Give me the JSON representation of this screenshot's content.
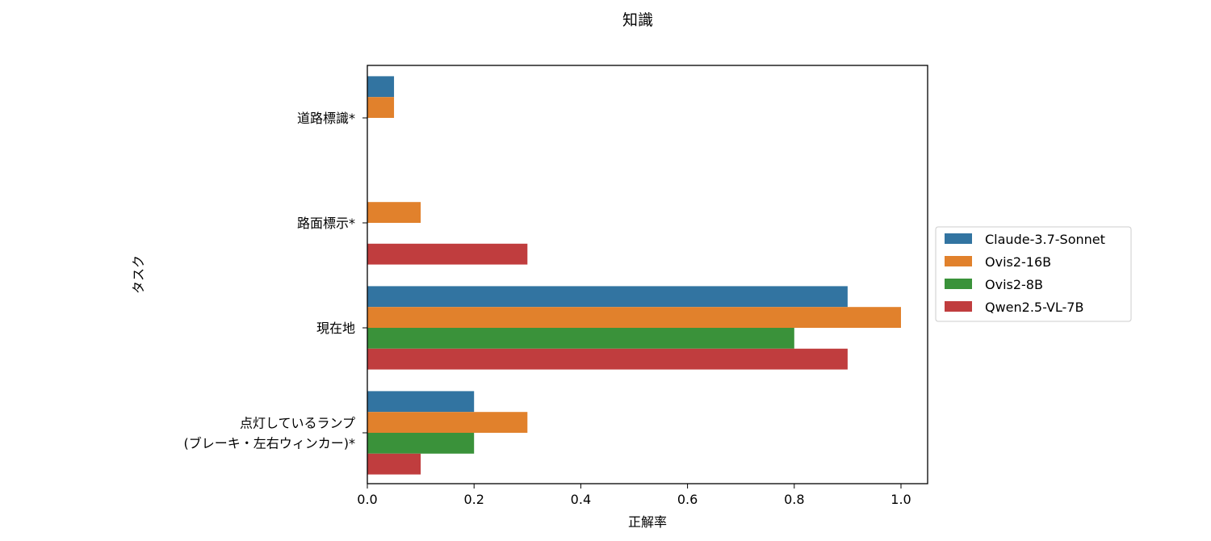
{
  "chart_data": {
    "type": "bar",
    "orientation": "horizontal",
    "title": "知識",
    "xlabel": "正解率",
    "ylabel": "タスク",
    "xlim": [
      0.0,
      1.05
    ],
    "xticks": [
      "0.0",
      "0.2",
      "0.4",
      "0.6",
      "0.8",
      "1.0"
    ],
    "categories": [
      [
        "道路標識*"
      ],
      [
        "路面標示*"
      ],
      [
        "現在地"
      ],
      [
        "点灯しているランプ",
        "(ブレーキ・左右ウィンカー)*"
      ]
    ],
    "series": [
      {
        "name": "Claude-3.7-Sonnet",
        "color": "#3274a1",
        "values": [
          0.05,
          0.0,
          0.9,
          0.2
        ]
      },
      {
        "name": "Ovis2-16B",
        "color": "#e1812c",
        "values": [
          0.05,
          0.1,
          1.0,
          0.3
        ]
      },
      {
        "name": "Ovis2-8B",
        "color": "#3a923a",
        "values": [
          0.0,
          0.0,
          0.8,
          0.2
        ]
      },
      {
        "name": "Qwen2.5-VL-7B",
        "color": "#c03d3e",
        "values": [
          0.0,
          0.3,
          0.9,
          0.1
        ]
      }
    ],
    "grid": false,
    "legend_position": "outside-right"
  }
}
